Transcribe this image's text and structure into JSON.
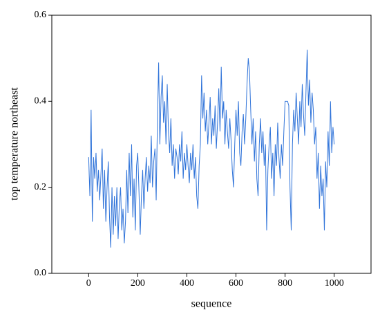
{
  "chart_data": {
    "type": "line",
    "xlabel": "sequence",
    "ylabel": "top temperature northeast",
    "color": "#2f73d9",
    "xlim": [
      -150,
      1150
    ],
    "ylim": [
      0,
      0.6
    ],
    "xticks": [
      0,
      200,
      400,
      600,
      800,
      1000
    ],
    "yticks": [
      {
        "value": 0,
        "label": "0.0"
      },
      0.2,
      0.4,
      0.6
    ],
    "x": [
      0,
      5,
      10,
      15,
      20,
      25,
      30,
      35,
      40,
      45,
      50,
      55,
      60,
      65,
      70,
      75,
      80,
      85,
      90,
      95,
      100,
      105,
      110,
      115,
      120,
      125,
      130,
      135,
      140,
      145,
      150,
      155,
      160,
      165,
      170,
      175,
      180,
      185,
      190,
      195,
      200,
      205,
      210,
      215,
      220,
      225,
      230,
      235,
      240,
      245,
      250,
      255,
      260,
      265,
      270,
      275,
      280,
      285,
      290,
      295,
      300,
      305,
      310,
      315,
      320,
      325,
      330,
      335,
      340,
      345,
      350,
      355,
      360,
      365,
      370,
      375,
      380,
      385,
      390,
      395,
      400,
      405,
      410,
      415,
      420,
      425,
      430,
      435,
      440,
      445,
      450,
      455,
      460,
      465,
      470,
      475,
      480,
      485,
      490,
      495,
      500,
      505,
      510,
      515,
      520,
      525,
      530,
      535,
      540,
      545,
      550,
      555,
      560,
      565,
      570,
      575,
      580,
      585,
      590,
      595,
      600,
      605,
      610,
      615,
      620,
      625,
      630,
      635,
      640,
      645,
      650,
      655,
      660,
      665,
      670,
      675,
      680,
      685,
      690,
      695,
      700,
      705,
      710,
      715,
      720,
      725,
      730,
      735,
      740,
      745,
      750,
      755,
      760,
      765,
      770,
      775,
      780,
      785,
      790,
      795,
      800,
      805,
      810,
      815,
      820,
      825,
      830,
      835,
      840,
      845,
      850,
      855,
      860,
      865,
      870,
      875,
      880,
      885,
      890,
      895,
      900,
      905,
      910,
      915,
      920,
      925,
      930,
      935,
      940,
      945,
      950,
      955,
      960,
      965,
      970,
      975,
      980,
      985,
      990,
      995,
      1000
    ],
    "values": [
      0.27,
      0.18,
      0.38,
      0.12,
      0.27,
      0.22,
      0.28,
      0.19,
      0.24,
      0.17,
      0.23,
      0.29,
      0.15,
      0.24,
      0.12,
      0.2,
      0.26,
      0.13,
      0.06,
      0.2,
      0.09,
      0.18,
      0.11,
      0.2,
      0.08,
      0.16,
      0.2,
      0.1,
      0.15,
      0.07,
      0.12,
      0.24,
      0.14,
      0.28,
      0.18,
      0.3,
      0.13,
      0.22,
      0.1,
      0.25,
      0.28,
      0.19,
      0.09,
      0.18,
      0.24,
      0.15,
      0.22,
      0.27,
      0.19,
      0.25,
      0.21,
      0.32,
      0.2,
      0.26,
      0.29,
      0.17,
      0.35,
      0.49,
      0.3,
      0.41,
      0.46,
      0.35,
      0.4,
      0.3,
      0.44,
      0.33,
      0.28,
      0.36,
      0.25,
      0.3,
      0.22,
      0.29,
      0.27,
      0.23,
      0.3,
      0.26,
      0.33,
      0.22,
      0.28,
      0.24,
      0.3,
      0.25,
      0.21,
      0.28,
      0.24,
      0.3,
      0.22,
      0.27,
      0.18,
      0.15,
      0.25,
      0.3,
      0.46,
      0.36,
      0.42,
      0.33,
      0.38,
      0.3,
      0.35,
      0.41,
      0.3,
      0.36,
      0.32,
      0.39,
      0.29,
      0.35,
      0.43,
      0.33,
      0.48,
      0.36,
      0.4,
      0.3,
      0.38,
      0.33,
      0.29,
      0.36,
      0.31,
      0.24,
      0.2,
      0.3,
      0.38,
      0.32,
      0.4,
      0.28,
      0.25,
      0.33,
      0.37,
      0.3,
      0.36,
      0.44,
      0.5,
      0.47,
      0.38,
      0.3,
      0.36,
      0.26,
      0.33,
      0.22,
      0.18,
      0.3,
      0.36,
      0.28,
      0.33,
      0.25,
      0.3,
      0.1,
      0.24,
      0.3,
      0.34,
      0.22,
      0.28,
      0.18,
      0.3,
      0.25,
      0.35,
      0.27,
      0.22,
      0.3,
      0.25,
      0.33,
      0.4,
      0.4,
      0.4,
      0.39,
      0.2,
      0.1,
      0.3,
      0.38,
      0.33,
      0.42,
      0.36,
      0.3,
      0.4,
      0.34,
      0.44,
      0.37,
      0.32,
      0.42,
      0.52,
      0.39,
      0.45,
      0.35,
      0.42,
      0.38,
      0.3,
      0.34,
      0.22,
      0.28,
      0.15,
      0.25,
      0.18,
      0.22,
      0.1,
      0.26,
      0.2,
      0.33,
      0.25,
      0.4,
      0.28,
      0.34,
      0.3
    ]
  }
}
